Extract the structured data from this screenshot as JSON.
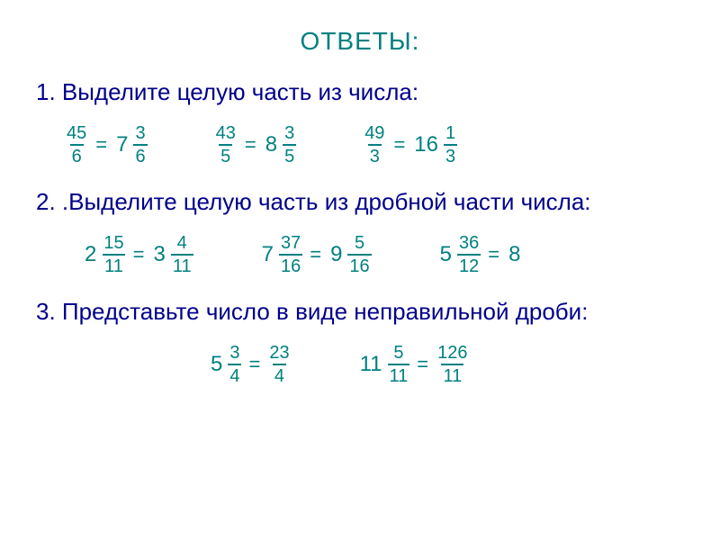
{
  "colors": {
    "title": "#008080",
    "math": "#008080",
    "heading": "#00008b",
    "background": "#ffffff",
    "frac_bar": "#008080"
  },
  "typography": {
    "title_fontsize": 28,
    "heading_fontsize": 26,
    "math_fontsize": 22,
    "frac_fontsize": 20,
    "font_family": "Arial"
  },
  "title": "ОТВЕТЫ:",
  "sections": [
    {
      "heading": "1. Выделите целую часть из числа:",
      "items": [
        {
          "left": {
            "whole": "",
            "num": "45",
            "den": "6"
          },
          "sign": "=",
          "right": {
            "whole": "7",
            "num": "3",
            "den": "6"
          }
        },
        {
          "left": {
            "whole": "",
            "num": "43",
            "den": "5"
          },
          "sign": "=",
          "right": {
            "whole": "8",
            "num": "3",
            "den": "5"
          }
        },
        {
          "left": {
            "whole": "",
            "num": "49",
            "den": "3"
          },
          "sign": "=",
          "right": {
            "whole": "16",
            "num": "1",
            "den": "3"
          }
        }
      ]
    },
    {
      "heading": "2. .Выделите целую часть из дробной части числа:",
      "items": [
        {
          "left": {
            "whole": "2",
            "num": "15",
            "den": "11"
          },
          "sign": "=",
          "right": {
            "whole": "3",
            "num": "4",
            "den": "11"
          }
        },
        {
          "left": {
            "whole": "7",
            "num": "37",
            "den": "16"
          },
          "sign": "=",
          "right": {
            "whole": "9",
            "num": "5",
            "den": "16"
          }
        },
        {
          "left": {
            "whole": "5",
            "num": "36",
            "den": "12"
          },
          "sign": "=",
          "right": {
            "whole": "8",
            "num": "",
            "den": ""
          }
        }
      ]
    },
    {
      "heading": "3. Представьте число в виде неправильной дроби:",
      "items": [
        {
          "left": {
            "whole": "5",
            "num": "3",
            "den": "4"
          },
          "sign": "=",
          "right": {
            "whole": "",
            "num": "23",
            "den": "4"
          }
        },
        {
          "left": {
            "whole": "11",
            "num": "5",
            "den": "11"
          },
          "sign": "=",
          "right": {
            "whole": "",
            "num": "126",
            "den": "11"
          }
        }
      ]
    }
  ]
}
